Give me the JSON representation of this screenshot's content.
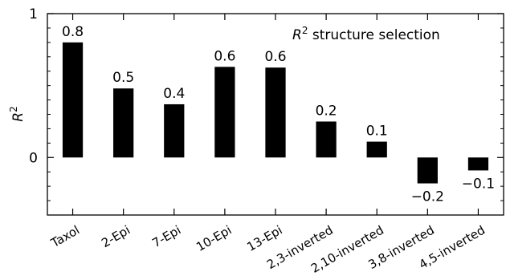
{
  "chart_data": {
    "type": "bar",
    "title": "structure selection",
    "title_symbol": "R",
    "title_superscript": "2",
    "ylabel": "R",
    "ylabel_superscript": "2",
    "xlabel": "",
    "ylim": [
      -0.4,
      1.0
    ],
    "major_ticks": [
      0,
      1
    ],
    "minor_tick_step": 0.1,
    "categories": [
      "Taxol",
      "2-Epi",
      "7-Epi",
      "10-Epi",
      "13-Epi",
      "2,3-inverted",
      "2,10-inverted",
      "3,8-inverted",
      "4,5-inverted"
    ],
    "values": [
      0.8,
      0.48,
      0.37,
      0.63,
      0.625,
      0.25,
      0.11,
      -0.18,
      -0.09
    ],
    "data_labels": [
      "0.8",
      "0.5",
      "0.4",
      "0.6",
      "0.6",
      "0.2",
      "0.1",
      "−0.2",
      "−0.1"
    ],
    "bar_color": "#000000",
    "grid": false,
    "legend": "none"
  }
}
